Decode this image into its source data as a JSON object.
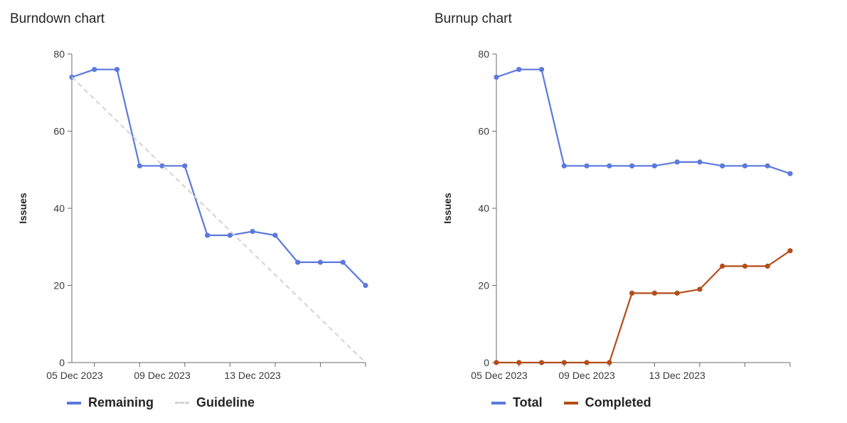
{
  "colors": {
    "remaining": "#5b79dd",
    "guideline": "#d3d3d3",
    "total": "#5b79dd",
    "completed": "#b34d1a"
  },
  "chart_data": [
    {
      "type": "line",
      "title": "Burndown chart",
      "xlabel": "",
      "ylabel": "Issues",
      "ylim": [
        0,
        80
      ],
      "yticks": [
        0,
        20,
        40,
        60,
        80
      ],
      "x": [
        "2023-12-05",
        "2023-12-06",
        "2023-12-07",
        "2023-12-08",
        "2023-12-09",
        "2023-12-10",
        "2023-12-11",
        "2023-12-12",
        "2023-12-13",
        "2023-12-14",
        "2023-12-15",
        "2023-12-16",
        "2023-12-17",
        "2023-12-18"
      ],
      "xtick_labels": [
        "05 Dec 2023",
        "09 Dec 2023",
        "13 Dec 2023"
      ],
      "series": [
        {
          "name": "Remaining",
          "style": "solid",
          "markers": true,
          "values": [
            74,
            76,
            76,
            51,
            51,
            51,
            33,
            33,
            34,
            33,
            26,
            26,
            26,
            20
          ]
        },
        {
          "name": "Guideline",
          "style": "dashed",
          "markers": false,
          "values": [
            74,
            null,
            null,
            null,
            null,
            null,
            null,
            null,
            null,
            null,
            null,
            null,
            null,
            0
          ]
        }
      ],
      "grid": false,
      "legend": "bottom-left"
    },
    {
      "type": "line",
      "title": "Burnup chart",
      "xlabel": "",
      "ylabel": "Issues",
      "ylim": [
        0,
        80
      ],
      "yticks": [
        0,
        20,
        40,
        60,
        80
      ],
      "x": [
        "2023-12-05",
        "2023-12-06",
        "2023-12-07",
        "2023-12-08",
        "2023-12-09",
        "2023-12-10",
        "2023-12-11",
        "2023-12-12",
        "2023-12-13",
        "2023-12-14",
        "2023-12-15",
        "2023-12-16",
        "2023-12-17",
        "2023-12-18"
      ],
      "xtick_labels": [
        "05 Dec 2023",
        "09 Dec 2023",
        "13 Dec 2023"
      ],
      "series": [
        {
          "name": "Total",
          "style": "solid",
          "markers": true,
          "values": [
            74,
            76,
            76,
            51,
            51,
            51,
            51,
            51,
            52,
            52,
            51,
            51,
            51,
            49
          ]
        },
        {
          "name": "Completed",
          "style": "solid",
          "markers": true,
          "values": [
            0,
            0,
            0,
            0,
            0,
            0,
            18,
            18,
            18,
            19,
            25,
            25,
            25,
            29
          ]
        }
      ],
      "grid": false,
      "legend": "bottom-left"
    }
  ]
}
